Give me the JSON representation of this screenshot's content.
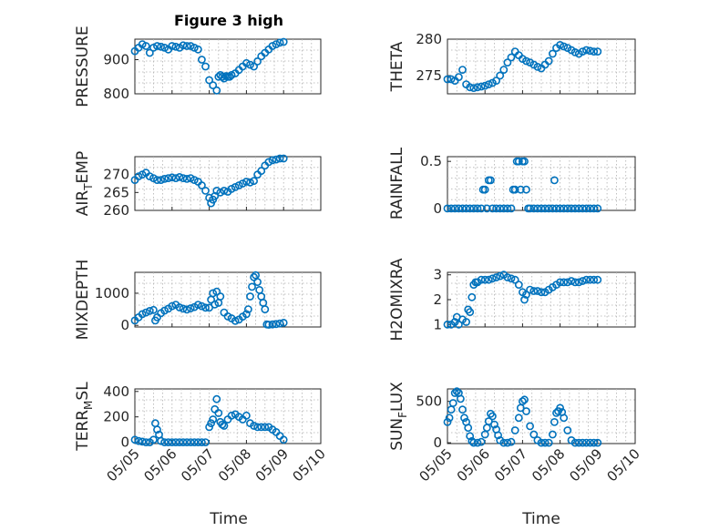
{
  "title": "Figure 3 high",
  "colors": {
    "marker": "#0072BD",
    "axis": "#262626",
    "grid": "#b0b0b0"
  },
  "x_ticks": [
    "05/05",
    "05/06",
    "05/07",
    "05/08",
    "05/09",
    "05/10"
  ],
  "x_label": "Time",
  "chart_data": [
    {
      "type": "scatter",
      "ylabel": "PRESSURE",
      "ylim": [
        800,
        960
      ],
      "yticks": [
        800,
        900
      ],
      "x": [
        0.0,
        0.1,
        0.2,
        0.3,
        0.4,
        0.5,
        0.6,
        0.7,
        0.8,
        0.9,
        1.0,
        1.1,
        1.2,
        1.3,
        1.4,
        1.5,
        1.6,
        1.7,
        1.8,
        1.9,
        2.0,
        2.1,
        2.2,
        2.25,
        2.3,
        2.35,
        2.4,
        2.45,
        2.5,
        2.55,
        2.6,
        2.7,
        2.8,
        2.9,
        3.0,
        3.1,
        3.2,
        3.3,
        3.4,
        3.5,
        3.6,
        3.7,
        3.8,
        3.9,
        4.0
      ],
      "y": [
        925,
        935,
        945,
        940,
        920,
        935,
        940,
        938,
        935,
        930,
        940,
        938,
        935,
        942,
        940,
        940,
        935,
        930,
        900,
        880,
        840,
        825,
        810,
        850,
        855,
        850,
        845,
        852,
        850,
        850,
        855,
        860,
        870,
        880,
        890,
        885,
        880,
        895,
        910,
        920,
        930,
        940,
        945,
        950,
        952
      ]
    },
    {
      "type": "scatter",
      "ylabel": "THETA",
      "ylim": [
        272.5,
        280
      ],
      "yticks": [
        275,
        280
      ],
      "x": [
        0.0,
        0.1,
        0.2,
        0.3,
        0.4,
        0.5,
        0.6,
        0.7,
        0.8,
        0.9,
        1.0,
        1.1,
        1.2,
        1.3,
        1.4,
        1.5,
        1.6,
        1.7,
        1.8,
        1.9,
        2.0,
        2.1,
        2.2,
        2.3,
        2.4,
        2.5,
        2.6,
        2.7,
        2.8,
        2.9,
        3.0,
        3.1,
        3.2,
        3.3,
        3.4,
        3.5,
        3.6,
        3.7,
        3.8,
        3.9,
        4.0
      ],
      "y": [
        274.5,
        274.5,
        274.3,
        274.8,
        275.8,
        273.8,
        273.4,
        273.3,
        273.4,
        273.5,
        273.6,
        273.8,
        274.0,
        274.3,
        275.0,
        275.8,
        276.8,
        277.5,
        278.3,
        277.8,
        277.3,
        277.0,
        276.8,
        276.5,
        276.2,
        276.0,
        276.5,
        277.0,
        278.0,
        278.8,
        279.2,
        279.0,
        278.8,
        278.5,
        278.2,
        278.0,
        278.3,
        278.5,
        278.4,
        278.3,
        278.3
      ]
    },
    {
      "type": "scatter",
      "ylabel": "AIR_TEMP",
      "ylim": [
        260,
        275
      ],
      "yticks": [
        260,
        265,
        270
      ],
      "x": [
        0.0,
        0.1,
        0.2,
        0.3,
        0.4,
        0.5,
        0.6,
        0.7,
        0.8,
        0.9,
        1.0,
        1.1,
        1.2,
        1.3,
        1.4,
        1.5,
        1.6,
        1.7,
        1.8,
        1.9,
        2.0,
        2.05,
        2.1,
        2.15,
        2.2,
        2.3,
        2.4,
        2.5,
        2.6,
        2.7,
        2.8,
        2.9,
        3.0,
        3.1,
        3.2,
        3.3,
        3.4,
        3.5,
        3.6,
        3.7,
        3.8,
        3.9,
        4.0
      ],
      "y": [
        268.5,
        269.5,
        270.0,
        270.5,
        269.5,
        269.0,
        268.5,
        268.5,
        268.8,
        269.0,
        269.2,
        269.0,
        269.3,
        269.0,
        268.8,
        269.0,
        268.5,
        268.0,
        267.0,
        265.5,
        263.5,
        262.0,
        263.0,
        264.0,
        265.5,
        265.0,
        265.5,
        265.2,
        266.0,
        266.5,
        267.0,
        267.5,
        268.0,
        267.8,
        268.2,
        270.0,
        271.0,
        272.5,
        273.5,
        274.0,
        274.2,
        274.5,
        274.5
      ]
    },
    {
      "type": "scatter",
      "ylabel": "RAINFALL",
      "ylim": [
        -0.02,
        0.55
      ],
      "yticks": [
        0,
        0.5
      ],
      "x": [
        0.0,
        0.1,
        0.2,
        0.3,
        0.4,
        0.5,
        0.6,
        0.7,
        0.8,
        0.9,
        0.95,
        1.0,
        1.05,
        1.1,
        1.15,
        1.2,
        1.3,
        1.4,
        1.5,
        1.6,
        1.7,
        1.75,
        1.8,
        1.85,
        1.9,
        1.95,
        2.0,
        2.05,
        2.1,
        2.15,
        2.2,
        2.3,
        2.4,
        2.5,
        2.6,
        2.7,
        2.8,
        2.85,
        2.9,
        3.0,
        3.1,
        3.2,
        3.3,
        3.4,
        3.5,
        3.6,
        3.7,
        3.8,
        3.9,
        4.0
      ],
      "y": [
        0,
        0,
        0,
        0,
        0,
        0,
        0,
        0,
        0,
        0,
        0.2,
        0.2,
        0,
        0.3,
        0.3,
        0,
        0,
        0,
        0,
        0,
        0,
        0.2,
        0.2,
        0.5,
        0.5,
        0.2,
        0.5,
        0.5,
        0.2,
        0,
        0,
        0,
        0,
        0,
        0,
        0,
        0,
        0.3,
        0,
        0,
        0,
        0,
        0,
        0,
        0,
        0,
        0,
        0,
        0,
        0
      ]
    },
    {
      "type": "scatter",
      "ylabel": "MIXDEPTH",
      "ylim": [
        -50,
        1650
      ],
      "yticks": [
        0,
        1000
      ],
      "x": [
        0.0,
        0.1,
        0.2,
        0.3,
        0.4,
        0.5,
        0.55,
        0.6,
        0.7,
        0.8,
        0.9,
        1.0,
        1.1,
        1.2,
        1.3,
        1.4,
        1.5,
        1.6,
        1.7,
        1.8,
        1.9,
        2.0,
        2.05,
        2.1,
        2.15,
        2.2,
        2.25,
        2.3,
        2.4,
        2.5,
        2.6,
        2.7,
        2.8,
        2.9,
        3.0,
        3.05,
        3.1,
        3.15,
        3.2,
        3.25,
        3.3,
        3.35,
        3.4,
        3.45,
        3.5,
        3.55,
        3.6,
        3.7,
        3.8,
        3.9,
        4.0
      ],
      "y": [
        150,
        250,
        350,
        400,
        450,
        480,
        150,
        250,
        380,
        460,
        520,
        600,
        640,
        560,
        520,
        490,
        530,
        570,
        640,
        600,
        550,
        550,
        800,
        1000,
        650,
        1050,
        700,
        900,
        400,
        280,
        220,
        140,
        180,
        270,
        350,
        500,
        900,
        1200,
        1500,
        1560,
        1350,
        1100,
        900,
        700,
        500,
        30,
        20,
        30,
        40,
        60,
        80
      ]
    },
    {
      "type": "scatter",
      "ylabel": "H2OMIXRA",
      "ylim": [
        0.9,
        3.1
      ],
      "yticks": [
        1,
        2,
        3
      ],
      "x": [
        0.0,
        0.1,
        0.2,
        0.25,
        0.3,
        0.4,
        0.5,
        0.55,
        0.6,
        0.65,
        0.7,
        0.75,
        0.8,
        0.9,
        1.0,
        1.1,
        1.2,
        1.3,
        1.4,
        1.5,
        1.6,
        1.7,
        1.8,
        1.9,
        2.0,
        2.05,
        2.1,
        2.2,
        2.3,
        2.4,
        2.5,
        2.6,
        2.7,
        2.8,
        2.9,
        3.0,
        3.1,
        3.2,
        3.3,
        3.4,
        3.5,
        3.6,
        3.7,
        3.8,
        3.9,
        4.0
      ],
      "y": [
        1.0,
        1.0,
        1.1,
        1.3,
        1.0,
        1.2,
        1.1,
        1.6,
        1.5,
        2.1,
        2.6,
        2.7,
        2.7,
        2.8,
        2.8,
        2.8,
        2.85,
        2.9,
        2.95,
        3.0,
        2.9,
        2.85,
        2.8,
        2.6,
        2.3,
        2.0,
        2.2,
        2.4,
        2.35,
        2.35,
        2.3,
        2.3,
        2.4,
        2.5,
        2.6,
        2.7,
        2.7,
        2.7,
        2.75,
        2.7,
        2.7,
        2.75,
        2.8,
        2.8,
        2.8,
        2.8
      ]
    },
    {
      "type": "scatter",
      "ylabel": "TERR_MSL",
      "ylim": [
        -10,
        420
      ],
      "yticks": [
        0,
        200,
        400
      ],
      "x": [
        0.0,
        0.1,
        0.2,
        0.3,
        0.4,
        0.5,
        0.55,
        0.6,
        0.65,
        0.7,
        0.8,
        0.9,
        1.0,
        1.1,
        1.2,
        1.3,
        1.4,
        1.5,
        1.6,
        1.7,
        1.8,
        1.9,
        2.0,
        2.05,
        2.1,
        2.15,
        2.2,
        2.25,
        2.3,
        2.35,
        2.4,
        2.5,
        2.6,
        2.7,
        2.8,
        2.9,
        3.0,
        3.1,
        3.2,
        3.3,
        3.4,
        3.5,
        3.6,
        3.7,
        3.8,
        3.9,
        4.0
      ],
      "y": [
        20,
        10,
        5,
        0,
        0,
        20,
        150,
        100,
        60,
        10,
        0,
        0,
        0,
        0,
        0,
        0,
        0,
        0,
        0,
        0,
        0,
        0,
        120,
        150,
        180,
        260,
        340,
        230,
        160,
        140,
        130,
        180,
        210,
        220,
        200,
        180,
        210,
        150,
        130,
        120,
        120,
        120,
        120,
        100,
        80,
        50,
        20
      ]
    },
    {
      "type": "scatter",
      "ylabel": "SUN_FLUX",
      "ylim": [
        -10,
        650
      ],
      "yticks": [
        0,
        500
      ],
      "x": [
        0.0,
        0.05,
        0.1,
        0.15,
        0.2,
        0.25,
        0.3,
        0.35,
        0.4,
        0.45,
        0.5,
        0.55,
        0.6,
        0.65,
        0.7,
        0.8,
        0.9,
        1.0,
        1.05,
        1.1,
        1.15,
        1.2,
        1.25,
        1.3,
        1.35,
        1.4,
        1.5,
        1.6,
        1.7,
        1.8,
        1.9,
        1.95,
        2.0,
        2.05,
        2.1,
        2.2,
        2.3,
        2.4,
        2.5,
        2.6,
        2.7,
        2.8,
        2.85,
        2.9,
        2.95,
        3.0,
        3.05,
        3.1,
        3.2,
        3.3,
        3.4,
        3.5,
        3.6,
        3.7,
        3.8,
        3.9,
        4.0
      ],
      "y": [
        250,
        300,
        400,
        480,
        600,
        620,
        600,
        530,
        400,
        300,
        250,
        180,
        80,
        20,
        0,
        0,
        10,
        100,
        180,
        260,
        350,
        320,
        220,
        160,
        90,
        30,
        0,
        0,
        10,
        150,
        300,
        420,
        500,
        520,
        380,
        200,
        100,
        30,
        0,
        0,
        0,
        100,
        250,
        360,
        380,
        420,
        370,
        300,
        150,
        30,
        0,
        0,
        0,
        0,
        0,
        0,
        0
      ]
    }
  ]
}
